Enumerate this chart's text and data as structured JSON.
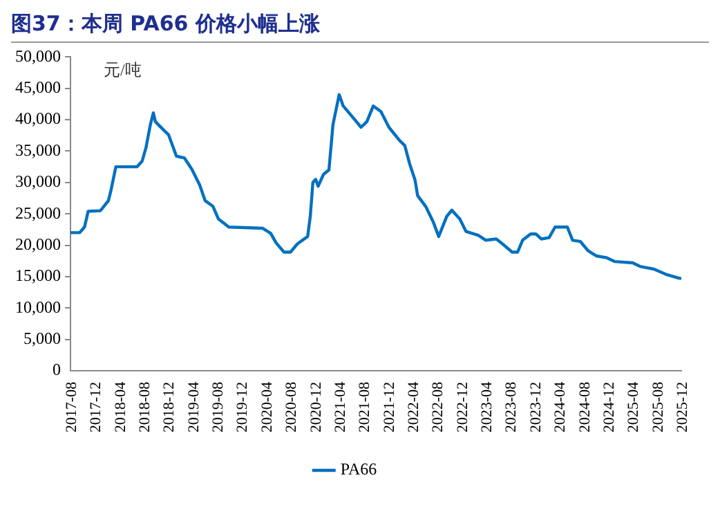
{
  "chart_data": {
    "type": "line",
    "title": "图37：本周 PA66 价格小幅上涨",
    "ylabel": "元/吨",
    "x": [
      "2017-08-01",
      "2017-09-15",
      "2017-10-10",
      "2017-10-28",
      "2017-12-28",
      "2018-02-06",
      "2018-02-19",
      "2018-03-15",
      "2018-06-28",
      "2018-07-24",
      "2018-08-12",
      "2018-09-03",
      "2018-09-18",
      "2018-09-28",
      "2018-11-07",
      "2018-12-03",
      "2019-01-11",
      "2019-02-20",
      "2019-03-29",
      "2019-05-07",
      "2019-06-03",
      "2019-07-12",
      "2019-08-08",
      "2019-09-29",
      "2020-03-16",
      "2020-04-25",
      "2020-05-21",
      "2020-06-30",
      "2020-08-01",
      "2020-09-04",
      "2020-10-26",
      "2020-11-08",
      "2020-11-21",
      "2020-12-05",
      "2020-12-17",
      "2021-01-13",
      "2021-02-09",
      "2021-03-01",
      "2021-04-01",
      "2021-04-21",
      "2021-06-05",
      "2021-07-19",
      "2021-08-17",
      "2021-09-18",
      "2021-10-26",
      "2021-12-05",
      "2022-01-27",
      "2022-02-22",
      "2022-03-18",
      "2022-04-14",
      "2022-04-27",
      "2022-06-06",
      "2022-07-14",
      "2022-08-10",
      "2022-09-19",
      "2022-10-14",
      "2022-11-23",
      "2022-12-24",
      "2023-02-23",
      "2023-04-02",
      "2023-05-24",
      "2023-07-02",
      "2023-08-11",
      "2023-09-07",
      "2023-10-02",
      "2023-11-11",
      "2023-12-07",
      "2024-01-03",
      "2024-02-11",
      "2024-03-12",
      "2024-05-12",
      "2024-06-07",
      "2024-07-16",
      "2024-08-24",
      "2024-10-03",
      "2024-11-25",
      "2025-01-04",
      "2025-04-03",
      "2025-05-12",
      "2025-07-17",
      "2025-09-21",
      "2025-11-13",
      "2025-12-01"
    ],
    "series": [
      {
        "name": "PA66",
        "color": "#0070c0",
        "values": [
          22000,
          22000,
          22900,
          25400,
          25500,
          27100,
          28800,
          32500,
          32500,
          33400,
          35500,
          39200,
          41100,
          39700,
          38400,
          37600,
          34200,
          33900,
          32100,
          29600,
          27100,
          26200,
          24200,
          22900,
          22700,
          21900,
          20400,
          18900,
          18900,
          20200,
          21400,
          24600,
          30000,
          30500,
          29400,
          31300,
          32000,
          39200,
          44000,
          42200,
          40500,
          38800,
          39700,
          42200,
          41300,
          38800,
          36700,
          35900,
          33000,
          30400,
          27900,
          26200,
          23700,
          21400,
          24600,
          25600,
          24200,
          22200,
          21600,
          20800,
          21000,
          20000,
          18900,
          18900,
          20800,
          21800,
          21800,
          21000,
          21200,
          22900,
          22900,
          20800,
          20600,
          19100,
          18300,
          18000,
          17400,
          17200,
          16600,
          16200,
          15300,
          14800,
          14700
        ]
      }
    ],
    "xlim": [
      "2017-08",
      "2025-12"
    ],
    "xticks": [
      "2017-08",
      "2017-12",
      "2018-04",
      "2018-08",
      "2018-12",
      "2019-04",
      "2019-08",
      "2019-12",
      "2020-04",
      "2020-08",
      "2020-12",
      "2021-04",
      "2021-08",
      "2021-12",
      "2022-04",
      "2022-08",
      "2022-12",
      "2023-04",
      "2023-08",
      "2023-12",
      "2024-04",
      "2024-08",
      "2024-12",
      "2025-04",
      "2025-08",
      "2025-12"
    ],
    "ylim": [
      0,
      50000
    ],
    "yticks": [
      0,
      {
        "value": 5000,
        "label": "5,000"
      },
      {
        "value": 10000,
        "label": "10,000"
      },
      {
        "value": 15000,
        "label": "15,000"
      },
      {
        "value": 20000,
        "label": "20,000"
      },
      {
        "value": 25000,
        "label": "25,000"
      },
      {
        "value": 30000,
        "label": "30,000"
      },
      {
        "value": 35000,
        "label": "35,000"
      },
      {
        "value": 40000,
        "label": "40,000"
      },
      {
        "value": 45000,
        "label": "45,000"
      },
      {
        "value": 50000,
        "label": "50,000"
      }
    ],
    "grid": false,
    "legend": "bottom"
  }
}
